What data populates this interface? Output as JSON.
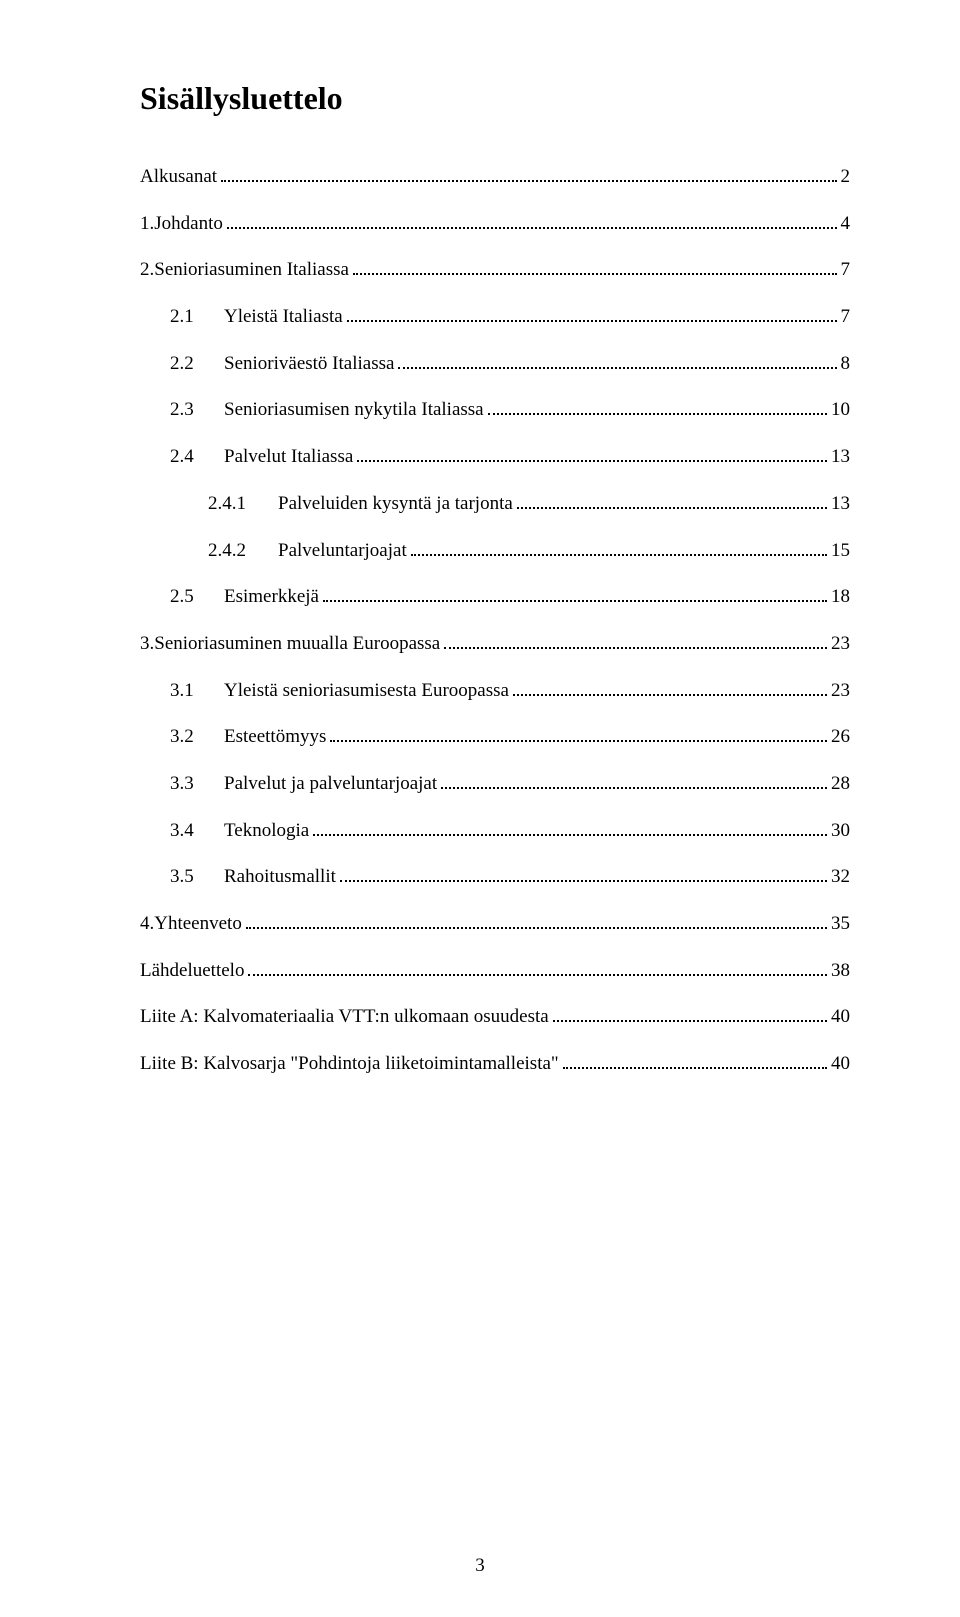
{
  "title": "Sisällysluettelo",
  "page_number": "3",
  "toc": [
    {
      "num": "",
      "label": "Alkusanat",
      "page": "2",
      "indent": 0,
      "spacer_before": false
    },
    {
      "num": "1.",
      "label": "Johdanto",
      "page": "4",
      "indent": 0,
      "spacer_before": true
    },
    {
      "num": "2.",
      "label": "Senioriasuminen Italiassa",
      "page": "7",
      "indent": 0,
      "spacer_before": true
    },
    {
      "num": "2.1",
      "label": "Yleistä Italiasta",
      "page": "7",
      "indent": 1,
      "spacer_before": false
    },
    {
      "num": "2.2",
      "label": "Senioriväestö Italiassa",
      "page": "8",
      "indent": 1,
      "spacer_before": false
    },
    {
      "num": "2.3",
      "label": "Senioriasumisen nykytila Italiassa",
      "page": "10",
      "indent": 1,
      "spacer_before": false
    },
    {
      "num": "2.4",
      "label": "Palvelut Italiassa",
      "page": "13",
      "indent": 1,
      "spacer_before": false
    },
    {
      "num": "2.4.1",
      "label": "Palveluiden kysyntä ja tarjonta",
      "page": "13",
      "indent": 2,
      "spacer_before": false
    },
    {
      "num": "2.4.2",
      "label": "Palveluntarjoajat",
      "page": "15",
      "indent": 2,
      "spacer_before": false
    },
    {
      "num": "2.5",
      "label": "Esimerkkejä",
      "page": "18",
      "indent": 1,
      "spacer_before": false
    },
    {
      "num": "3.",
      "label": "Senioriasuminen muualla Euroopassa",
      "page": "23",
      "indent": 0,
      "spacer_before": true
    },
    {
      "num": "3.1",
      "label": "Yleistä senioriasumisesta Euroopassa",
      "page": "23",
      "indent": 1,
      "spacer_before": false
    },
    {
      "num": "3.2",
      "label": "Esteettömyys",
      "page": "26",
      "indent": 1,
      "spacer_before": false
    },
    {
      "num": "3.3",
      "label": "Palvelut ja palveluntarjoajat",
      "page": "28",
      "indent": 1,
      "spacer_before": false
    },
    {
      "num": "3.4",
      "label": "Teknologia",
      "page": "30",
      "indent": 1,
      "spacer_before": false
    },
    {
      "num": "3.5",
      "label": "Rahoitusmallit",
      "page": "32",
      "indent": 1,
      "spacer_before": false
    },
    {
      "num": "4.",
      "label": "Yhteenveto",
      "page": "35",
      "indent": 0,
      "spacer_before": true
    },
    {
      "num": "",
      "label": "Lähdeluettelo",
      "page": "38",
      "indent": 0,
      "spacer_before": true
    },
    {
      "num": "",
      "label": "Liite A: Kalvomateriaalia VTT:n ulkomaan osuudesta",
      "page": "40",
      "indent": 0,
      "spacer_before": true
    },
    {
      "num": "",
      "label": "Liite B: Kalvosarja \"Pohdintoja liiketoimintamalleista\"",
      "page": "40",
      "indent": 0,
      "spacer_before": true
    }
  ]
}
